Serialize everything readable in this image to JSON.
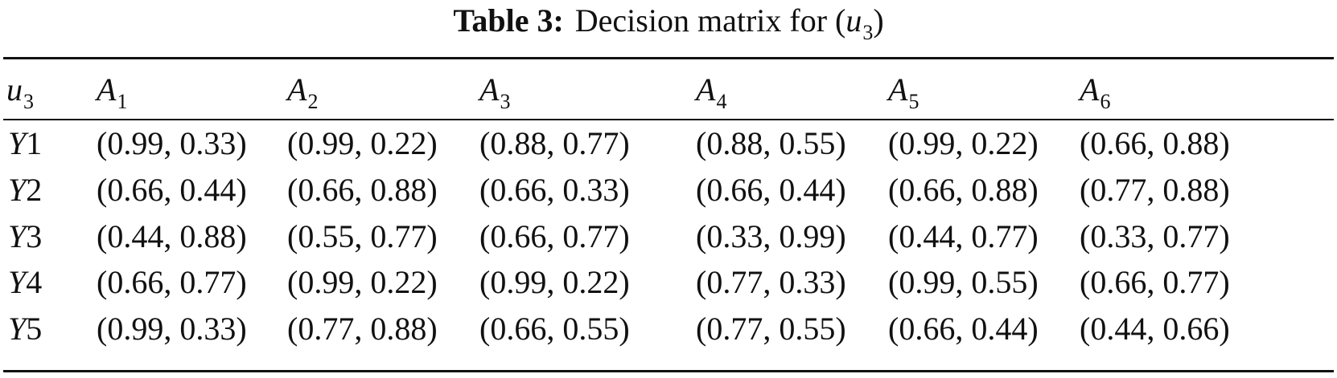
{
  "caption": {
    "label": "Table 3:",
    "text_before": "Decision matrix for (",
    "var": "u",
    "var_sub": "3",
    "text_after": ")"
  },
  "table": {
    "corner": {
      "var": "u",
      "sub": "3"
    },
    "columns": [
      {
        "var": "A",
        "sub": "1"
      },
      {
        "var": "A",
        "sub": "2"
      },
      {
        "var": "A",
        "sub": "3"
      },
      {
        "var": "A",
        "sub": "4"
      },
      {
        "var": "A",
        "sub": "5"
      },
      {
        "var": "A",
        "sub": "6"
      }
    ],
    "rows": [
      {
        "var": "Y",
        "num": "1",
        "cells": [
          "(0.99, 0.33)",
          "(0.99, 0.22)",
          "(0.88, 0.77)",
          "(0.88, 0.55)",
          "(0.99, 0.22)",
          "(0.66, 0.88)"
        ]
      },
      {
        "var": "Y",
        "num": "2",
        "cells": [
          "(0.66, 0.44)",
          "(0.66, 0.88)",
          "(0.66, 0.33)",
          "(0.66, 0.44)",
          "(0.66, 0.88)",
          "(0.77, 0.88)"
        ]
      },
      {
        "var": "Y",
        "num": "3",
        "cells": [
          "(0.44, 0.88)",
          "(0.55, 0.77)",
          "(0.66, 0.77)",
          "(0.33, 0.99)",
          "(0.44, 0.77)",
          "(0.33, 0.77)"
        ]
      },
      {
        "var": "Y",
        "num": "4",
        "cells": [
          "(0.66, 0.77)",
          "(0.99, 0.22)",
          "(0.99, 0.22)",
          "(0.77, 0.33)",
          "(0.99, 0.55)",
          "(0.66, 0.77)"
        ]
      },
      {
        "var": "Y",
        "num": "5",
        "cells": [
          "(0.99, 0.33)",
          "(0.77, 0.88)",
          "(0.66, 0.55)",
          "(0.77, 0.55)",
          "(0.66, 0.44)",
          "(0.44, 0.66)"
        ]
      }
    ]
  }
}
